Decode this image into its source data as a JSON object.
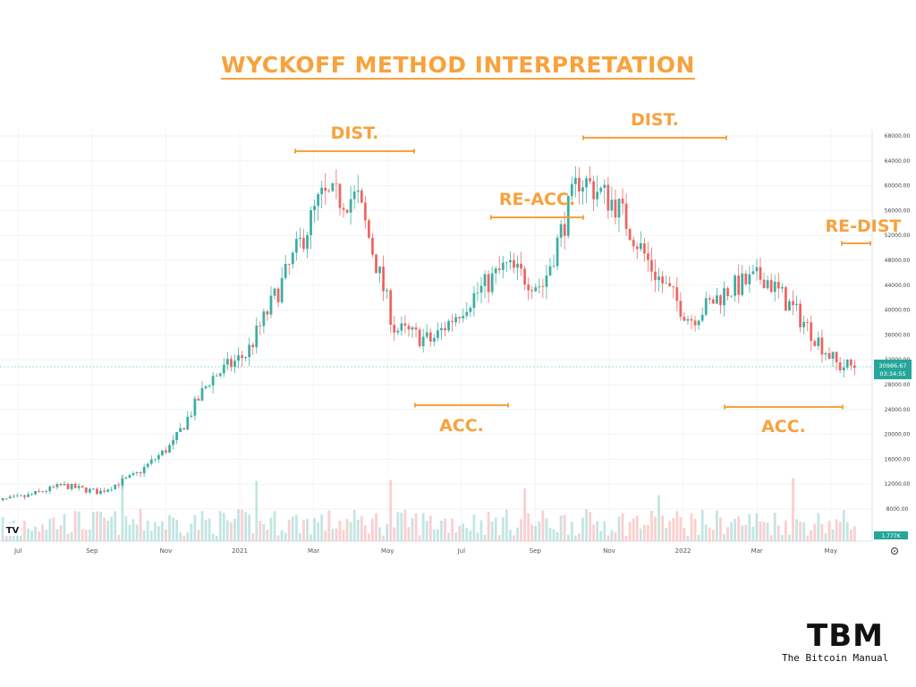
{
  "title": "WYCKOFF METHOD INTERPRETATION",
  "brand": {
    "mark": "TBM",
    "name": "The Bitcoin Manual"
  },
  "watermark": "TV",
  "price_tag": {
    "price": "30986.67",
    "countdown": "03:34:55"
  },
  "volume_tag": "1.777K",
  "chart_data": {
    "type": "line",
    "series_kind": "candlestick",
    "x": [
      "2020-06",
      "2020-07",
      "2020-08",
      "2020-09",
      "2020-10",
      "2020-11",
      "2020-12",
      "2021-01",
      "2021-02",
      "2021-03",
      "2021-04",
      "2021-05",
      "2021-06",
      "2021-07",
      "2021-08",
      "2021-09",
      "2021-10",
      "2021-11",
      "2021-12",
      "2022-01",
      "2022-02",
      "2022-03",
      "2022-04",
      "2022-05"
    ],
    "close": [
      9100,
      10000,
      11800,
      10700,
      13500,
      18500,
      28900,
      33000,
      45000,
      58000,
      58000,
      37000,
      35000,
      41500,
      47000,
      43800,
      61300,
      57000,
      46300,
      38500,
      43200,
      45500,
      38600,
      30987
    ],
    "x_ticks": [
      "Jul",
      "Sep",
      "Nov",
      "2021",
      "Mar",
      "May",
      "Jul",
      "Sep",
      "Nov",
      "2022",
      "Mar",
      "May"
    ],
    "y_ticks": [
      "8000.00",
      "12000.00",
      "16000.00",
      "20000.00",
      "24000.00",
      "28000.00",
      "32000.00",
      "36000.00",
      "40000.00",
      "44000.00",
      "48000.00",
      "52000.00",
      "56000.00",
      "60000.00",
      "64000.00",
      "68000.00"
    ],
    "ylim": [
      4000,
      70000
    ],
    "annotations": [
      {
        "label": "DIST.",
        "start": "2021-02",
        "end": "2021-05"
      },
      {
        "label": "ACC.",
        "start": "2021-05",
        "end": "2021-08"
      },
      {
        "label": "RE-ACC.",
        "start": "2021-08",
        "end": "2021-10"
      },
      {
        "label": "DIST.",
        "start": "2021-10",
        "end": "2022-01"
      },
      {
        "label": "ACC.",
        "start": "2022-01",
        "end": "2022-05"
      },
      {
        "label": "RE-DIST",
        "start": "2022-05",
        "end": "2022-05"
      }
    ],
    "colors": {
      "up": "#26a69a",
      "down": "#ef5350",
      "annotation": "#f7a23d"
    }
  }
}
